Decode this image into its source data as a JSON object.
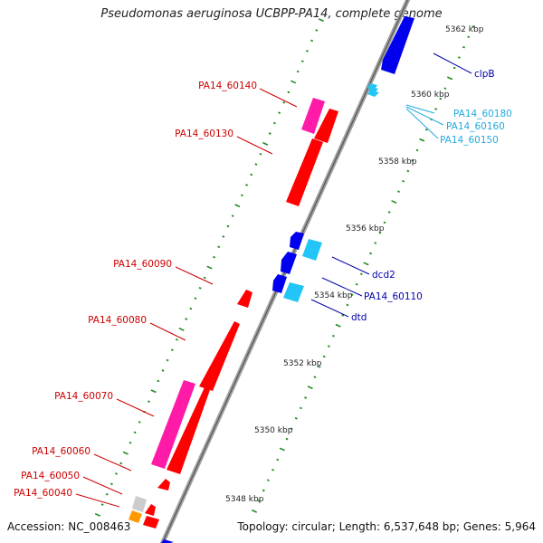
{
  "title": "Pseudomonas aeruginosa UCBPP-PA14, complete genome",
  "footer": {
    "accession": "Accession: NC_008463",
    "topology": "Topology: circular; Length: 6,537,648 bp; Genes: 5,964"
  },
  "colors": {
    "forward_gene": "#ff0000",
    "forward_gene_alt": "#ff1aa8",
    "reverse_gene": "#0000ee",
    "reverse_gene_alt": "#22c5f5",
    "forward_label": "#cc0000",
    "reverse_label": "#0000aa",
    "reverse_label_alt": "#22aadd",
    "axis": "#888888",
    "tick": "#228b22"
  },
  "kbp_ticks": [
    "5362 kbp",
    "5360 kbp",
    "5358 kbp",
    "5356 kbp",
    "5354 kbp",
    "5352 kbp",
    "5350 kbp",
    "5348 kbp"
  ],
  "forward_labels": [
    "PA14_60140",
    "PA14_60130",
    "PA14_60090",
    "PA14_60080",
    "PA14_60070",
    "PA14_60060",
    "PA14_60050",
    "PA14_60040"
  ],
  "reverse_labels": [
    "clpB",
    "PA14_60180",
    "PA14_60160",
    "PA14_60150",
    "dcd2",
    "PA14_60110",
    "dtd"
  ]
}
